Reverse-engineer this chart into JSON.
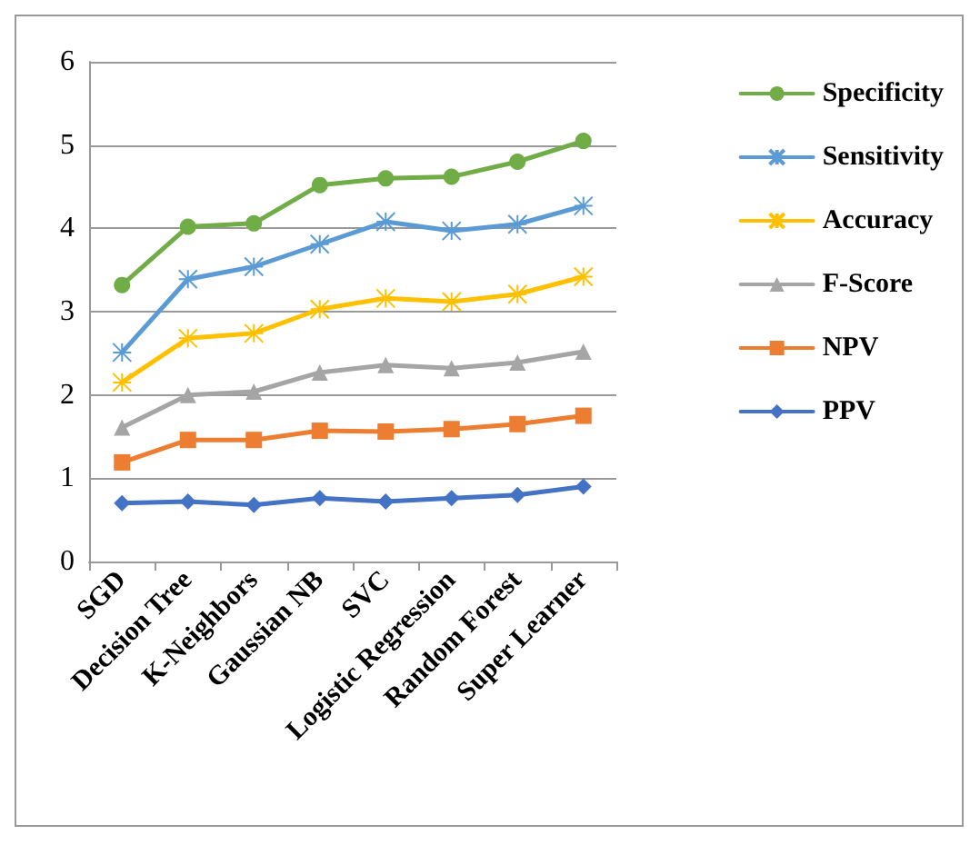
{
  "chart_data": {
    "type": "line",
    "categories": [
      "SGD",
      "Decision Tree",
      "K-Neighbors",
      "Gaussian NB",
      "SVC",
      "Logistic Regression",
      "Random Forest",
      "Super Learner"
    ],
    "series": [
      {
        "name": "Specificity",
        "color": "#70ad47",
        "marker": "circle",
        "values": [
          3.32,
          4.02,
          4.06,
          4.52,
          4.6,
          4.62,
          4.8,
          5.05
        ]
      },
      {
        "name": "Sensitivity",
        "color": "#5b9bd5",
        "marker": "cross",
        "values": [
          2.51,
          3.39,
          3.54,
          3.81,
          4.08,
          3.97,
          4.05,
          4.27
        ]
      },
      {
        "name": "Accuracy",
        "color": "#ffc000",
        "marker": "cross",
        "values": [
          2.15,
          2.68,
          2.74,
          3.03,
          3.16,
          3.12,
          3.21,
          3.42
        ]
      },
      {
        "name": "F-Score",
        "color": "#a5a5a5",
        "marker": "triangle",
        "values": [
          1.61,
          2.0,
          2.04,
          2.27,
          2.36,
          2.32,
          2.39,
          2.52
        ]
      },
      {
        "name": "NPV",
        "color": "#ed7d31",
        "marker": "square",
        "values": [
          1.19,
          1.46,
          1.46,
          1.57,
          1.56,
          1.59,
          1.65,
          1.75
        ]
      },
      {
        "name": "PPV",
        "color": "#4472c4",
        "marker": "diamond",
        "values": [
          0.7,
          0.72,
          0.68,
          0.76,
          0.72,
          0.76,
          0.8,
          0.9
        ]
      }
    ],
    "ylim": [
      0,
      6
    ],
    "yticks": [
      0,
      1,
      2,
      3,
      4,
      5,
      6
    ],
    "grid": "y",
    "legend": "right",
    "line_style": "solid"
  }
}
